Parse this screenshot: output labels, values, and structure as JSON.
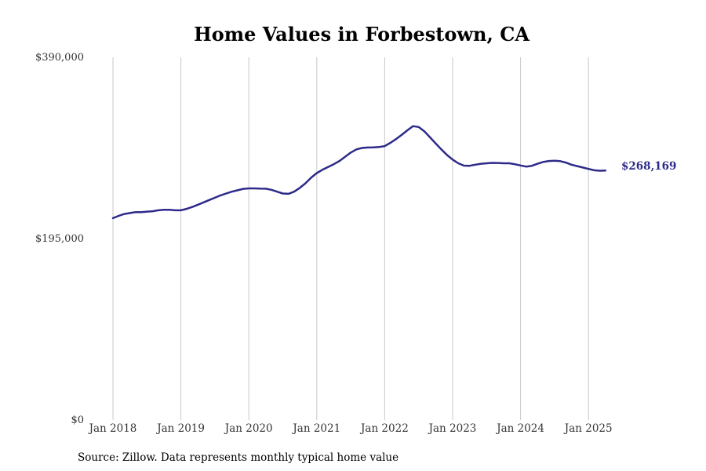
{
  "colors": {
    "line": "#2e2a8a",
    "grid": "#c8c8c8"
  },
  "chart_data": {
    "type": "line",
    "title": "Home Values in Forbestown, CA",
    "source": "Source: Zillow. Data represents monthly typical home value",
    "xlabel": "",
    "ylabel": "",
    "ylim": [
      0,
      390000
    ],
    "yticks": [
      0,
      195000,
      390000
    ],
    "ytick_labels": [
      "$0",
      "$195,000",
      "$390,000"
    ],
    "xticks": [
      "2018-01",
      "2019-01",
      "2020-01",
      "2021-01",
      "2022-01",
      "2023-01",
      "2024-01",
      "2025-01"
    ],
    "xtick_labels": [
      "Jan 2018",
      "Jan 2019",
      "Jan 2020",
      "Jan 2021",
      "Jan 2022",
      "Jan 2023",
      "Jan 2024",
      "Jan 2025"
    ],
    "grid": "vertical",
    "end_label": "$268,169",
    "series": [
      {
        "x": [
          "2018-01",
          "2018-02",
          "2018-03",
          "2018-04",
          "2018-05",
          "2018-06",
          "2018-07",
          "2018-08",
          "2018-09",
          "2018-10",
          "2018-11",
          "2018-12",
          "2019-01",
          "2019-02",
          "2019-03",
          "2019-04",
          "2019-05",
          "2019-06",
          "2019-07",
          "2019-08",
          "2019-09",
          "2019-10",
          "2019-11",
          "2019-12",
          "2020-01",
          "2020-02",
          "2020-03",
          "2020-04",
          "2020-05",
          "2020-06",
          "2020-07",
          "2020-08",
          "2020-09",
          "2020-10",
          "2020-11",
          "2020-12",
          "2021-01",
          "2021-02",
          "2021-03",
          "2021-04",
          "2021-05",
          "2021-06",
          "2021-07",
          "2021-08",
          "2021-09",
          "2021-10",
          "2021-11",
          "2021-12",
          "2022-01",
          "2022-02",
          "2022-03",
          "2022-04",
          "2022-05",
          "2022-06",
          "2022-07",
          "2022-08",
          "2022-09",
          "2022-10",
          "2022-11",
          "2022-12",
          "2023-01",
          "2023-02",
          "2023-03",
          "2023-04",
          "2023-05",
          "2023-06",
          "2023-07",
          "2023-08",
          "2023-09",
          "2023-10",
          "2023-11",
          "2023-12",
          "2024-01",
          "2024-02",
          "2024-03",
          "2024-04",
          "2024-05",
          "2024-06",
          "2024-07",
          "2024-08",
          "2024-09",
          "2024-10",
          "2024-11",
          "2024-12",
          "2025-01",
          "2025-02",
          "2025-03",
          "2025-04"
        ],
        "values": [
          217000,
          219500,
          221500,
          222500,
          223500,
          223500,
          224000,
          224500,
          225500,
          226000,
          226000,
          225500,
          225500,
          227000,
          229000,
          231500,
          234000,
          236500,
          239000,
          241500,
          243500,
          245500,
          247000,
          248500,
          249000,
          249000,
          248800,
          248700,
          247500,
          245500,
          243500,
          243200,
          245500,
          249500,
          254500,
          260500,
          265500,
          269000,
          272000,
          275000,
          278500,
          283000,
          287500,
          291000,
          292500,
          293000,
          293200,
          293500,
          294500,
          298000,
          302000,
          306500,
          311500,
          316000,
          315000,
          310500,
          304000,
          297500,
          291000,
          285000,
          280000,
          276000,
          273500,
          273300,
          274500,
          275500,
          276000,
          276500,
          276400,
          276000,
          276000,
          275000,
          273700,
          272500,
          273300,
          275500,
          277500,
          278500,
          278700,
          278300,
          276800,
          274500,
          273000,
          271500,
          270000,
          268500,
          268000,
          268169
        ]
      }
    ]
  }
}
